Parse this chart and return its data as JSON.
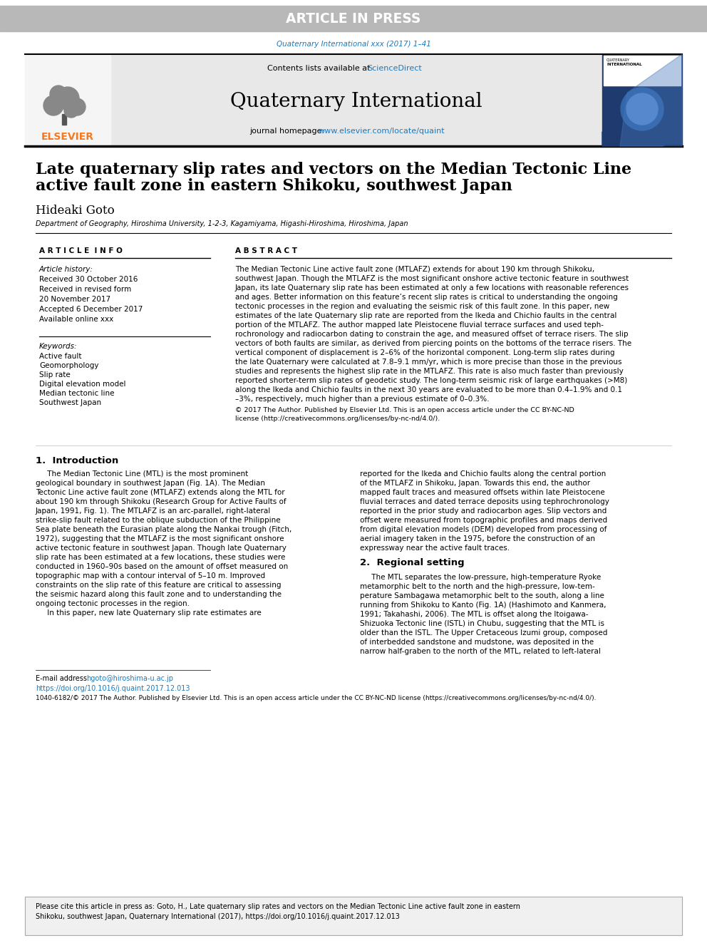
{
  "article_in_press_text": "ARTICLE IN PRESS",
  "journal_ref_text": "Quaternary International xxx (2017) 1–41",
  "journal_ref_color": "#1a7abf",
  "science_direct_text": "ScienceDirect",
  "science_direct_color": "#1a7abf",
  "journal_title": "Quaternary International",
  "journal_homepage_label": "journal homepage: ",
  "journal_homepage_url": "www.elsevier.com/locate/quaint",
  "journal_homepage_color": "#1a7abf",
  "elsevier_color": "#f47920",
  "paper_title_line1": "Late quaternary slip rates and vectors on the Median Tectonic Line",
  "paper_title_line2": "active fault zone in eastern Shikoku, southwest Japan",
  "author_name": "Hideaki Goto",
  "affiliation": "Department of Geography, Hiroshima University, 1-2-3, Kagamiyama, Higashi-Hiroshima, Hiroshima, Japan",
  "article_info_header": "A R T I C L E  I N F O",
  "abstract_header": "A B S T R A C T",
  "article_history_label": "Article history:",
  "received_text": "Received 30 October 2016",
  "revised_text": "Received in revised form",
  "revised_date": "20 November 2017",
  "accepted_text": "Accepted 6 December 2017",
  "available_text": "Available online xxx",
  "keywords_label": "Keywords:",
  "keywords": [
    "Active fault",
    "Geomorphology",
    "Slip rate",
    "Digital elevation model",
    "Median tectonic line",
    "Southwest Japan"
  ],
  "abstract_lines": [
    "The Median Tectonic Line active fault zone (MTLAFZ) extends for about 190 km through Shikoku,",
    "southwest Japan. Though the MTLAFZ is the most significant onshore active tectonic feature in southwest",
    "Japan, its late Quaternary slip rate has been estimated at only a few locations with reasonable references",
    "and ages. Better information on this feature’s recent slip rates is critical to understanding the ongoing",
    "tectonic processes in the region and evaluating the seismic risk of this fault zone. In this paper, new",
    "estimates of the late Quaternary slip rate are reported from the Ikeda and Chichio faults in the central",
    "portion of the MTLAFZ. The author mapped late Pleistocene fluvial terrace surfaces and used teph-",
    "rochronology and radiocarbon dating to constrain the age, and measured offset of terrace risers. The slip",
    "vectors of both faults are similar, as derived from piercing points on the bottoms of the terrace risers. The",
    "vertical component of displacement is 2–6% of the horizontal component. Long-term slip rates during",
    "the late Quaternary were calculated at 7.8–9.1 mm/yr, which is more precise than those in the previous",
    "studies and represents the highest slip rate in the MTLAFZ. This rate is also much faster than previously",
    "reported shorter-term slip rates of geodetic study. The long-term seismic risk of large earthquakes (>M8)",
    "along the Ikeda and Chichio faults in the next 30 years are evaluated to be more than 0.4–1.9% and 0.1",
    "–3%, respectively, much higher than a previous estimate of 0–0.3%."
  ],
  "copyright_line1": "© 2017 The Author. Published by Elsevier Ltd. This is an open access article under the CC BY-NC-ND",
  "copyright_line2": "license (http://creativecommons.org/licenses/by-nc-nd/4.0/).",
  "section1_header": "1.  Introduction",
  "intro_col1": [
    "     The Median Tectonic Line (MTL) is the most prominent",
    "geological boundary in southwest Japan (Fig. 1A). The Median",
    "Tectonic Line active fault zone (MTLAFZ) extends along the MTL for",
    "about 190 km through Shikoku (Research Group for Active Faults of",
    "Japan, 1991, Fig. 1). The MTLAFZ is an arc-parallel, right-lateral",
    "strike-slip fault related to the oblique subduction of the Philippine",
    "Sea plate beneath the Eurasian plate along the Nankai trough (Fitch,",
    "1972), suggesting that the MTLAFZ is the most significant onshore",
    "active tectonic feature in southwest Japan. Though late Quaternary",
    "slip rate has been estimated at a few locations, these studies were",
    "conducted in 1960–90s based on the amount of offset measured on",
    "topographic map with a contour interval of 5–10 m. Improved",
    "constraints on the slip rate of this feature are critical to assessing",
    "the seismic hazard along this fault zone and to understanding the",
    "ongoing tectonic processes in the region.",
    "     In this paper, new late Quaternary slip rate estimates are"
  ],
  "intro_col2": [
    "reported for the Ikeda and Chichio faults along the central portion",
    "of the MTLAFZ in Shikoku, Japan. Towards this end, the author",
    "mapped fault traces and measured offsets within late Pleistocene",
    "fluvial terraces and dated terrace deposits using tephrochronology",
    "reported in the prior study and radiocarbon ages. Slip vectors and",
    "offset were measured from topographic profiles and maps derived",
    "from digital elevation models (DEM) developed from processing of",
    "aerial imagery taken in the 1975, before the construction of an",
    "expressway near the active fault traces."
  ],
  "section2_header": "2.  Regional setting",
  "section2_col2": [
    "     The MTL separates the low-pressure, high-temperature Ryoke",
    "metamorphic belt to the north and the high-pressure, low-tem-",
    "perature Sambagawa metamorphic belt to the south, along a line",
    "running from Shikoku to Kanto (Fig. 1A) (Hashimoto and Kanmera,",
    "1991; Takahashi, 2006). The MTL is offset along the Itoigawa-",
    "Shizuoka Tectonic line (ISTL) in Chubu, suggesting that the MTL is",
    "older than the ISTL. The Upper Cretaceous Izumi group, composed",
    "of interbedded sandstone and mudstone, was deposited in the",
    "narrow half-graben to the north of the MTL, related to left-lateral"
  ],
  "email_label": "E-mail address: ",
  "email_text": "hgoto@hiroshima-u.ac.jp",
  "email_color": "#1a7abf",
  "doi_text": "https://doi.org/10.1016/j.quaint.2017.12.013",
  "doi_color": "#1a7abf",
  "footer_text": "1040-6182/© 2017 The Author. Published by Elsevier Ltd. This is an open access article under the CC BY-NC-ND license (https://creativecommons.org/licenses/by-nc-nd/4.0/).",
  "cite_lines": [
    "Please cite this article in press as: Goto, H., Late quaternary slip rates and vectors on the Median Tectonic Line active fault zone in eastern",
    "Shikoku, southwest Japan, Quaternary International (2017), https://doi.org/10.1016/j.quaint.2017.12.013"
  ],
  "bg_color": "#ffffff",
  "header_bg": "#b8b8b8",
  "journal_header_bg": "#e8e8e8",
  "link_color": "#1a7abf"
}
